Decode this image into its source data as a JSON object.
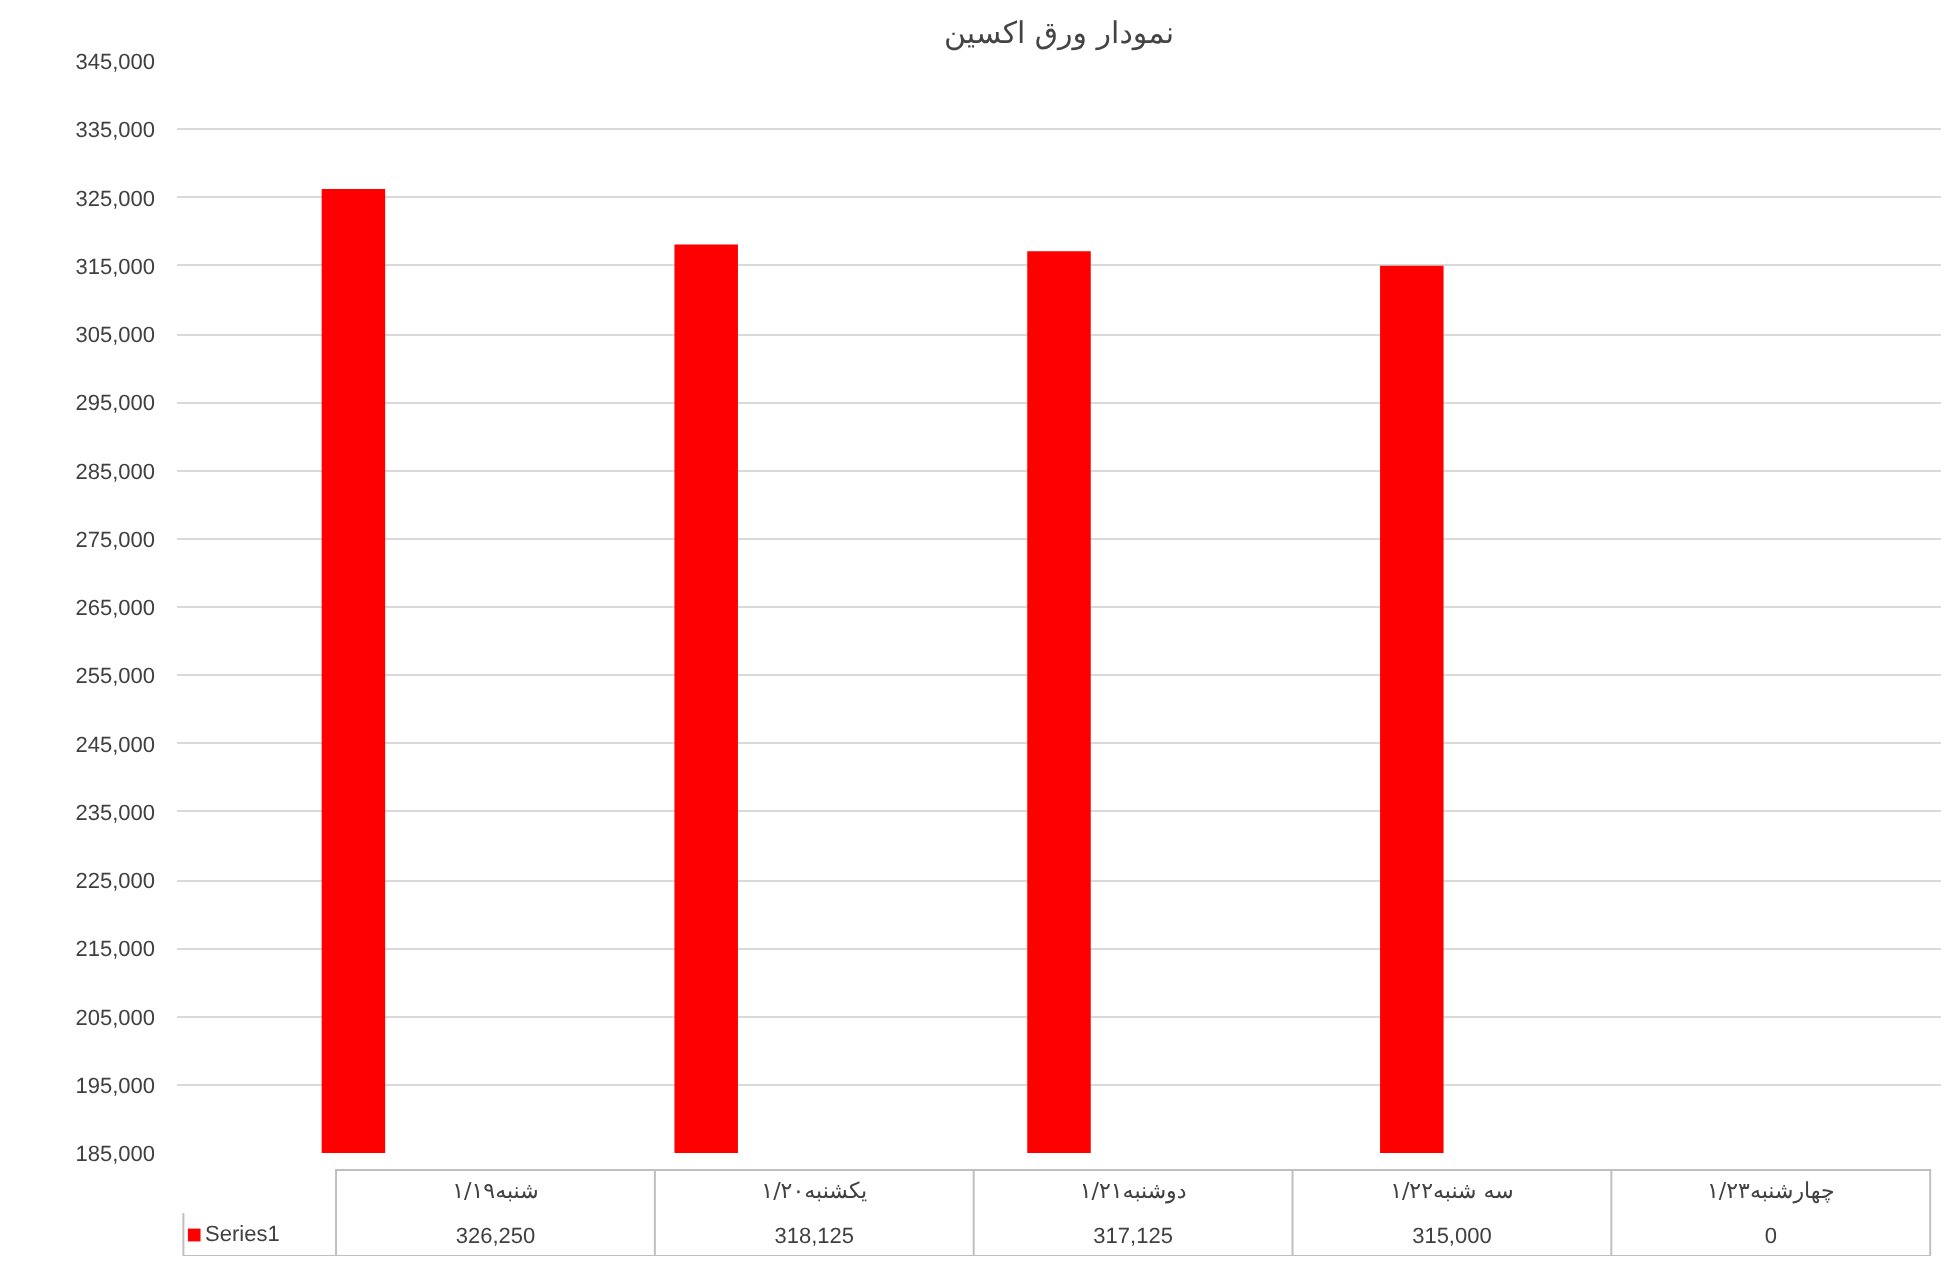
{
  "chart_data": {
    "type": "bar",
    "title": "نمودار ورق اکسین",
    "categories": [
      "شنبه۱/۱۹",
      "یکشنبه۱/۲۰",
      "دوشنبه۱/۲۱",
      "سه شنبه۱/۲۲",
      "چهارشنبه۱/۲۳"
    ],
    "series": [
      {
        "name": "Series1",
        "color": "#ff0000",
        "values": [
          326250,
          318125,
          317125,
          315000,
          null
        ],
        "value_labels": [
          "326,250",
          "318,125",
          "317,125",
          "315,000",
          "0"
        ]
      }
    ],
    "ylim": [
      185000,
      345000
    ],
    "yticks": [
      {
        "value": 185000,
        "label": "185,000"
      },
      {
        "value": 195000,
        "label": "195,000"
      },
      {
        "value": 205000,
        "label": "205,000"
      },
      {
        "value": 215000,
        "label": "215,000"
      },
      {
        "value": 225000,
        "label": "225,000"
      },
      {
        "value": 235000,
        "label": "235,000"
      },
      {
        "value": 245000,
        "label": "245,000"
      },
      {
        "value": 255000,
        "label": "255,000"
      },
      {
        "value": 265000,
        "label": "265,000"
      },
      {
        "value": 275000,
        "label": "275,000"
      },
      {
        "value": 285000,
        "label": "285,000"
      },
      {
        "value": 295000,
        "label": "295,000"
      },
      {
        "value": 305000,
        "label": "305,000"
      },
      {
        "value": 315000,
        "label": "315,000"
      },
      {
        "value": 325000,
        "label": "325,000"
      },
      {
        "value": 335000,
        "label": "335,000"
      },
      {
        "value": 345000,
        "label": "345,000"
      }
    ],
    "grid": "y"
  }
}
